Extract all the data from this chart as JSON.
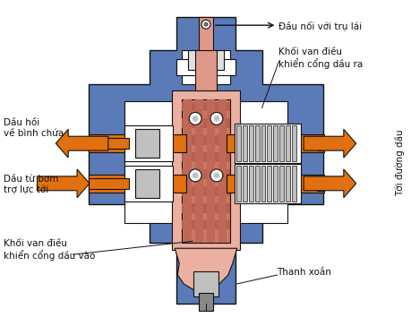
{
  "bg_color": "#ffffff",
  "blue": "#5b7ab8",
  "orange": "#e07010",
  "pink": "#e09888",
  "dpink": "#cc7860",
  "lpink": "#ebb0a0",
  "gray": "#888888",
  "lgray": "#c0c0c0",
  "white": "#ffffff",
  "dk": "#111111",
  "labels": {
    "top_arrow": "Đầu nối với trụ lái",
    "top_right": "Khối van điều\nkhiển cổng dầu ra",
    "left_top": "Dầu hồi\nvề bình chứa",
    "left_bot": "Dầu từ bơm\ntrợ lực tới",
    "bot_left": "Khối van điều\nkhiển cổng dầu vào",
    "bot_right": "Thanh xoắn",
    "right": "Tới đường dầu"
  }
}
